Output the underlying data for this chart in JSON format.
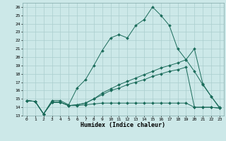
{
  "xlabel": "Humidex (Indice chaleur)",
  "bg_color": "#cce8e8",
  "grid_color": "#aacece",
  "line_color": "#1a6b5a",
  "x_ticks": [
    0,
    1,
    2,
    3,
    4,
    5,
    6,
    7,
    8,
    9,
    10,
    11,
    12,
    13,
    14,
    15,
    16,
    17,
    18,
    19,
    20,
    21,
    22,
    23
  ],
  "ylim": [
    13,
    26.5
  ],
  "y_ticks": [
    13,
    14,
    15,
    16,
    17,
    18,
    19,
    20,
    21,
    22,
    23,
    24,
    25,
    26
  ],
  "series": [
    {
      "x": [
        0,
        1,
        2,
        3,
        4,
        5,
        6,
        7,
        8,
        9,
        10,
        11,
        12,
        13,
        14,
        15,
        16,
        17,
        18,
        19,
        20,
        21,
        22,
        23
      ],
      "y": [
        14.8,
        14.7,
        13.2,
        14.8,
        14.8,
        14.3,
        16.3,
        17.3,
        19.0,
        20.8,
        22.3,
        22.7,
        22.3,
        23.8,
        24.5,
        26.0,
        25.0,
        23.8,
        21.0,
        19.7,
        21.0,
        16.8,
        15.3,
        14.0
      ]
    },
    {
      "x": [
        0,
        1,
        2,
        3,
        4,
        5,
        6,
        7,
        8,
        9,
        10,
        11,
        12,
        13,
        14,
        15,
        16,
        17,
        18,
        19,
        20,
        21,
        22,
        23
      ],
      "y": [
        14.8,
        14.7,
        13.2,
        14.6,
        14.6,
        14.2,
        14.2,
        14.3,
        14.4,
        14.5,
        14.5,
        14.5,
        14.5,
        14.5,
        14.5,
        14.5,
        14.5,
        14.5,
        14.5,
        14.5,
        14.0,
        14.0,
        14.0,
        13.9
      ]
    },
    {
      "x": [
        0,
        1,
        2,
        3,
        4,
        5,
        6,
        7,
        8,
        9,
        10,
        11,
        12,
        13,
        14,
        15,
        16,
        17,
        18,
        19,
        20,
        21,
        22,
        23
      ],
      "y": [
        14.8,
        14.7,
        13.2,
        14.6,
        14.6,
        14.2,
        14.3,
        14.5,
        15.0,
        15.5,
        16.0,
        16.3,
        16.7,
        17.0,
        17.3,
        17.7,
        18.0,
        18.3,
        18.5,
        18.8,
        14.0,
        14.0,
        14.0,
        13.9
      ]
    },
    {
      "x": [
        0,
        1,
        2,
        3,
        4,
        5,
        6,
        7,
        8,
        9,
        10,
        11,
        12,
        13,
        14,
        15,
        16,
        17,
        18,
        19,
        20,
        21,
        22,
        23
      ],
      "y": [
        14.8,
        14.7,
        13.2,
        14.6,
        14.6,
        14.2,
        14.3,
        14.5,
        15.0,
        15.7,
        16.2,
        16.7,
        17.1,
        17.5,
        17.9,
        18.3,
        18.7,
        19.0,
        19.3,
        19.7,
        18.3,
        16.7,
        15.3,
        13.9
      ]
    }
  ]
}
